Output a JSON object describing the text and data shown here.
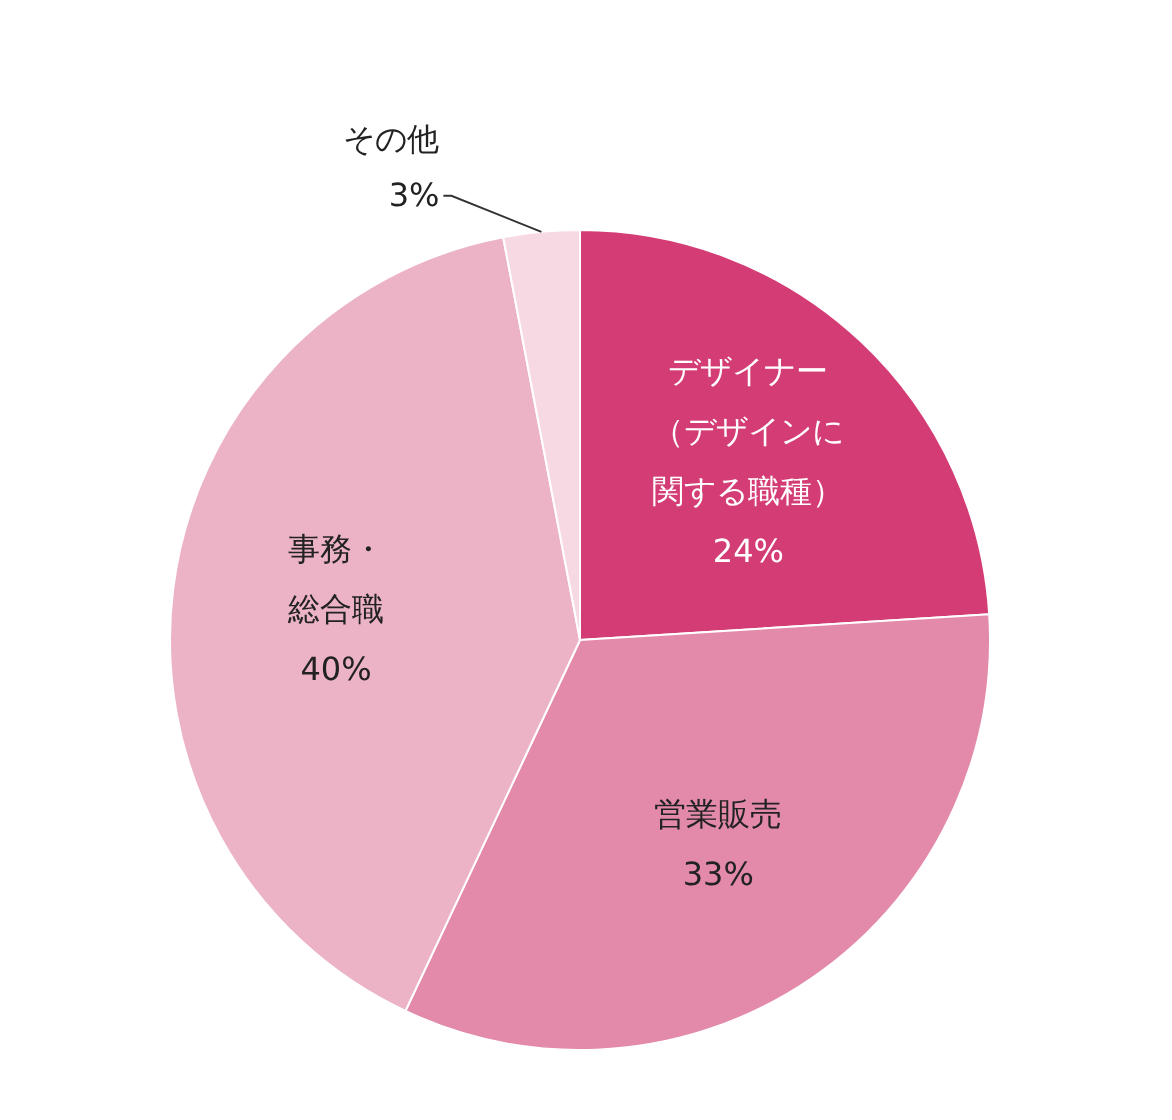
{
  "chart_data": {
    "type": "pie",
    "categories": [
      "デザイナー（デザインに関する職種）",
      "営業販売",
      "事務・総合職",
      "その他"
    ],
    "values": [
      24,
      33,
      40,
      3
    ],
    "colors": [
      "#d33c74",
      "#e38aab",
      "#ecb3c7",
      "#f7d9e3"
    ],
    "value_labels": [
      "24%",
      "33%",
      "40%",
      "3%"
    ]
  }
}
